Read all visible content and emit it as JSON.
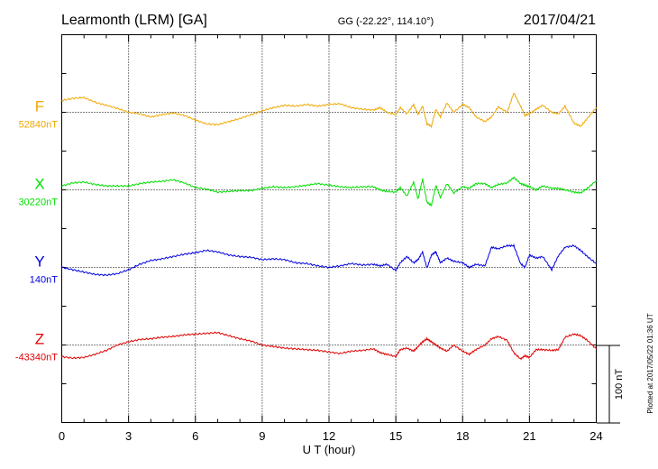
{
  "header": {
    "station": "Learmonth (LRM)  [GA]",
    "coords": "GG (-22.22°, 114.10°)",
    "date": "2017/04/21"
  },
  "plotted_note": "Plotted at 2017/05/22 01:36 UT",
  "chart_data": {
    "type": "line",
    "xlabel": "U T (hour)",
    "xlim": [
      0,
      24
    ],
    "x_ticks": [
      "0",
      "3",
      "6",
      "9",
      "12",
      "15",
      "18",
      "21",
      "24"
    ],
    "scale_label": "100 nT",
    "series": [
      {
        "name": "F",
        "baseline_label": "52840nT",
        "color": "#f0a800",
        "x": [
          0,
          0.5,
          1.0,
          1.5,
          2.0,
          2.5,
          3.0,
          3.5,
          4.0,
          4.5,
          5.0,
          5.5,
          6.0,
          6.5,
          7.0,
          7.5,
          8.0,
          8.5,
          9.0,
          9.5,
          10.0,
          10.5,
          11.0,
          11.5,
          12.0,
          12.5,
          13.0,
          13.5,
          14.0,
          14.3,
          14.6,
          15.0,
          15.2,
          15.5,
          15.8,
          16.0,
          16.2,
          16.4,
          16.6,
          16.8,
          17.0,
          17.3,
          17.6,
          18.0,
          18.3,
          18.6,
          19.0,
          19.3,
          19.6,
          20.0,
          20.3,
          20.6,
          20.8,
          21.0,
          21.3,
          21.6,
          22.0,
          22.3,
          22.6,
          23.0,
          23.3,
          23.6,
          24.0
        ],
        "y": [
          15,
          18,
          19,
          13,
          9,
          5,
          0,
          -2,
          -6,
          -3,
          -1,
          -4,
          -10,
          -15,
          -16,
          -12,
          -8,
          -3,
          2,
          6,
          9,
          8,
          10,
          8,
          10,
          11,
          6,
          4,
          3,
          6,
          0,
          -3,
          6,
          -2,
          10,
          -3,
          8,
          -15,
          -18,
          4,
          -6,
          12,
          0,
          10,
          6,
          -6,
          -12,
          -6,
          7,
          0,
          25,
          8,
          -4,
          -2,
          4,
          9,
          0,
          -2,
          8,
          -14,
          -18,
          -8,
          6
        ]
      },
      {
        "name": "X",
        "baseline_label": "30220nT",
        "color": "#00e000",
        "x": [
          0,
          0.5,
          1.0,
          1.5,
          2.0,
          2.5,
          3.0,
          3.5,
          4.0,
          4.5,
          5.0,
          5.5,
          6.0,
          6.5,
          7.0,
          7.5,
          8.0,
          8.5,
          9.0,
          9.5,
          10.0,
          10.5,
          11.0,
          11.5,
          12.0,
          12.5,
          13.0,
          13.5,
          14.0,
          14.3,
          14.6,
          15.0,
          15.2,
          15.5,
          15.8,
          16.0,
          16.2,
          16.4,
          16.6,
          16.8,
          17.0,
          17.3,
          17.6,
          18.0,
          18.3,
          18.6,
          19.0,
          19.3,
          19.6,
          20.0,
          20.3,
          20.6,
          20.8,
          21.0,
          21.3,
          21.6,
          22.0,
          22.3,
          22.6,
          23.0,
          23.3,
          23.6,
          24.0
        ],
        "y": [
          5,
          9,
          10,
          7,
          5,
          5,
          5,
          8,
          10,
          11,
          13,
          9,
          3,
          1,
          -3,
          -2,
          -1,
          -1,
          2,
          4,
          3,
          4,
          6,
          8,
          6,
          4,
          3,
          4,
          4,
          0,
          -2,
          -3,
          3,
          -8,
          10,
          -12,
          14,
          -16,
          -20,
          6,
          -10,
          8,
          -4,
          4,
          2,
          8,
          8,
          3,
          7,
          9,
          16,
          8,
          6,
          4,
          0,
          5,
          2,
          2,
          0,
          -3,
          -4,
          2,
          12
        ]
      },
      {
        "name": "Y",
        "baseline_label": "140nT",
        "color": "#0000e0",
        "x": [
          0,
          0.5,
          1.0,
          1.5,
          2.0,
          2.5,
          3.0,
          3.5,
          4.0,
          4.5,
          5.0,
          5.5,
          6.0,
          6.5,
          7.0,
          7.5,
          8.0,
          8.5,
          9.0,
          9.5,
          10.0,
          10.5,
          11.0,
          11.5,
          12.0,
          12.5,
          13.0,
          13.5,
          14.0,
          14.3,
          14.6,
          15.0,
          15.2,
          15.5,
          15.8,
          16.0,
          16.2,
          16.4,
          16.6,
          16.8,
          17.0,
          17.3,
          17.6,
          18.0,
          18.3,
          18.6,
          19.0,
          19.3,
          19.6,
          20.0,
          20.3,
          20.6,
          20.8,
          21.0,
          21.3,
          21.6,
          22.0,
          22.3,
          22.6,
          23.0,
          23.3,
          23.6,
          24.0
        ],
        "y": [
          0,
          -3,
          -6,
          -9,
          -10,
          -8,
          -3,
          4,
          9,
          11,
          14,
          17,
          19,
          22,
          20,
          16,
          14,
          13,
          10,
          11,
          10,
          6,
          5,
          2,
          0,
          2,
          5,
          3,
          4,
          2,
          4,
          -4,
          6,
          14,
          6,
          10,
          20,
          -1,
          16,
          20,
          6,
          12,
          8,
          6,
          0,
          4,
          2,
          26,
          24,
          28,
          28,
          5,
          0,
          16,
          12,
          14,
          -3,
          15,
          26,
          28,
          22,
          14,
          5
        ]
      },
      {
        "name": "Z",
        "baseline_label": "-43340nT",
        "color": "#e00000",
        "x": [
          0,
          0.5,
          1.0,
          1.5,
          2.0,
          2.5,
          3.0,
          3.5,
          4.0,
          4.5,
          5.0,
          5.5,
          6.0,
          6.5,
          7.0,
          7.5,
          8.0,
          8.5,
          9.0,
          9.5,
          10.0,
          10.5,
          11.0,
          11.5,
          12.0,
          12.5,
          13.0,
          13.5,
          14.0,
          14.3,
          14.6,
          15.0,
          15.2,
          15.5,
          15.8,
          16.0,
          16.2,
          16.4,
          16.6,
          16.8,
          17.0,
          17.3,
          17.6,
          18.0,
          18.3,
          18.6,
          19.0,
          19.3,
          19.6,
          20.0,
          20.3,
          20.6,
          20.8,
          21.0,
          21.3,
          21.6,
          22.0,
          22.3,
          22.6,
          23.0,
          23.3,
          23.6,
          24.0
        ],
        "y": [
          -15,
          -17,
          -16,
          -12,
          -7,
          0,
          4,
          7,
          8,
          10,
          11,
          13,
          14,
          15,
          16,
          12,
          8,
          5,
          0,
          -2,
          -4,
          -5,
          -6,
          -7,
          -9,
          -11,
          -8,
          -7,
          -5,
          -10,
          -12,
          -15,
          -6,
          -4,
          -8,
          -2,
          4,
          8,
          4,
          0,
          -4,
          -8,
          0,
          -8,
          -12,
          -6,
          0,
          8,
          11,
          6,
          -10,
          -18,
          -14,
          -16,
          -6,
          -6,
          -7,
          -6,
          10,
          14,
          12,
          6,
          -5
        ]
      }
    ]
  }
}
